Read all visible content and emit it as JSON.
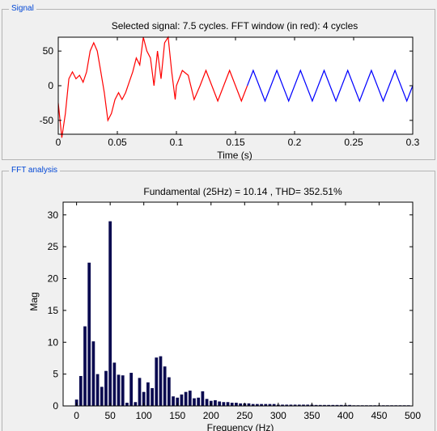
{
  "signal_panel": {
    "label": "Signal"
  },
  "fft_panel": {
    "label": "FFT analysis"
  },
  "chart_data": [
    {
      "type": "line",
      "title": "Selected signal: 7.5 cycles. FFT window (in red): 4 cycles",
      "xlabel": "Time (s)",
      "ylabel": "",
      "xlim": [
        0,
        0.3
      ],
      "ylim": [
        -70,
        70
      ],
      "xticks": [
        "0",
        "0.05",
        "0.1",
        "0.15",
        "0.2",
        "0.25",
        "0.3"
      ],
      "yticks": [
        "50",
        "0",
        "-50"
      ],
      "series": [
        {
          "color": "#ff0000",
          "x": [
            0,
            0.003,
            0.006,
            0.009,
            0.012,
            0.015,
            0.018,
            0.021,
            0.024,
            0.027,
            0.03,
            0.033,
            0.036,
            0.039,
            0.042,
            0.045,
            0.048,
            0.051,
            0.054,
            0.057,
            0.06,
            0.063,
            0.066,
            0.069,
            0.072,
            0.075,
            0.078,
            0.081,
            0.084,
            0.087,
            0.09,
            0.093,
            0.096,
            0.099,
            0.1,
            0.105,
            0.11,
            0.115,
            0.12,
            0.125,
            0.13,
            0.135,
            0.14,
            0.145,
            0.15,
            0.155,
            0.16
          ],
          "y": [
            -25,
            -75,
            -40,
            10,
            20,
            10,
            15,
            5,
            20,
            50,
            62,
            50,
            20,
            -10,
            -50,
            -40,
            -20,
            -10,
            -20,
            -10,
            5,
            20,
            40,
            30,
            70,
            50,
            40,
            0,
            50,
            10,
            62,
            70,
            20,
            -20,
            0,
            22,
            15,
            -20,
            0,
            22,
            0,
            -22,
            0,
            22,
            0,
            -22,
            0
          ]
        },
        {
          "color": "#0000ff",
          "x": [
            0.16,
            0.165,
            0.17,
            0.175,
            0.18,
            0.185,
            0.19,
            0.195,
            0.2,
            0.205,
            0.21,
            0.215,
            0.22,
            0.225,
            0.23,
            0.235,
            0.24,
            0.245,
            0.25,
            0.255,
            0.26,
            0.265,
            0.27,
            0.275,
            0.28,
            0.285,
            0.29,
            0.295,
            0.3
          ],
          "y": [
            0,
            22,
            0,
            -22,
            0,
            22,
            0,
            -22,
            0,
            22,
            0,
            -22,
            0,
            22,
            0,
            -22,
            0,
            22,
            0,
            -22,
            0,
            22,
            0,
            -22,
            0,
            22,
            0,
            -22,
            0
          ]
        }
      ]
    },
    {
      "type": "bar",
      "title": "Fundamental (25Hz) = 10.14 , THD= 352.51%",
      "xlabel": "Frequency (Hz)",
      "ylabel": "Mag",
      "xlim": [
        -20,
        500
      ],
      "ylim": [
        0,
        32
      ],
      "xticks": [
        "0",
        "50",
        "100",
        "150",
        "200",
        "250",
        "300",
        "350",
        "400",
        "450",
        "500"
      ],
      "yticks": [
        "0",
        "5",
        "10",
        "15",
        "20",
        "25",
        "30"
      ],
      "bar_color": "#0a0a50",
      "x": [
        0,
        6.25,
        12.5,
        18.75,
        25,
        31.25,
        37.5,
        43.75,
        50,
        56.25,
        62.5,
        68.75,
        75,
        81.25,
        87.5,
        93.75,
        100,
        106.25,
        112.5,
        118.75,
        125,
        131.25,
        137.5,
        143.75,
        150,
        156.25,
        162.5,
        168.75,
        175,
        181.25,
        187.5,
        193.75,
        200,
        206.25,
        212.5,
        218.75,
        225,
        231.25,
        237.5,
        243.75,
        250,
        256.25,
        262.5,
        268.75,
        275,
        281.25,
        287.5,
        293.75,
        300,
        306.25,
        312.5,
        318.75,
        325,
        331.25,
        337.5,
        343.75,
        350,
        356.25,
        362.5,
        368.75,
        375,
        381.25,
        387.5,
        393.75,
        400,
        406.25,
        412.5,
        418.75,
        425,
        431.25,
        437.5,
        443.75,
        450,
        456.25,
        462.5,
        468.75,
        475,
        481.25,
        487.5,
        493.75
      ],
      "values": [
        1,
        4.7,
        12.5,
        22.5,
        10.14,
        5,
        3,
        5.5,
        29,
        6.8,
        4.9,
        4.8,
        0.5,
        5.2,
        0.6,
        4.4,
        2.2,
        3.7,
        2.8,
        7.6,
        7.8,
        6.2,
        4.5,
        1.5,
        1.3,
        1.8,
        2.2,
        2.4,
        1.2,
        1.3,
        2.3,
        1.1,
        0.8,
        0.9,
        0.7,
        0.6,
        0.6,
        0.5,
        0.5,
        0.4,
        0.4,
        0.4,
        0.3,
        0.3,
        0.3,
        0.3,
        0.3,
        0.3,
        0.2,
        0.2,
        0.2,
        0.2,
        0.2,
        0.2,
        0.2,
        0.2,
        0.2,
        0.15,
        0.15,
        0.15,
        0.15,
        0.15,
        0.15,
        0.15,
        0.15,
        0.15,
        0.1,
        0.1,
        0.1,
        0.1,
        0.1,
        0.1,
        0.1,
        0.1,
        0.1,
        0.1,
        0.1,
        0.1,
        0.1,
        0.1
      ]
    }
  ]
}
